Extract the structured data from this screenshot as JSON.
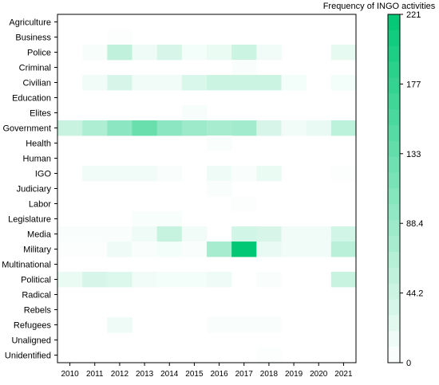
{
  "chart_data": {
    "type": "heatmap",
    "title": "",
    "xlabel": "",
    "ylabel": "",
    "x_categories": [
      "2010",
      "2011",
      "2012",
      "2013",
      "2014",
      "2015",
      "2016",
      "2017",
      "2018",
      "2019",
      "2020",
      "2021"
    ],
    "y_categories": [
      "Agriculture",
      "Business",
      "Police",
      "Criminal",
      "Civilian",
      "Education",
      "Elites",
      "Government",
      "Health",
      "Human",
      "IGO",
      "Judiciary",
      "Labor",
      "Legislature",
      "Media",
      "Military",
      "Multinational",
      "Political",
      "Radical",
      "Rebels",
      "Refugees",
      "Unaligned",
      "Unidentified"
    ],
    "values": [
      [
        0,
        0,
        0,
        0,
        0,
        0,
        0,
        0,
        0,
        0,
        0,
        0
      ],
      [
        0,
        0,
        3,
        0,
        0,
        0,
        0,
        0,
        0,
        0,
        0,
        0
      ],
      [
        0,
        8,
        55,
        15,
        35,
        10,
        18,
        45,
        12,
        0,
        0,
        22
      ],
      [
        0,
        0,
        0,
        0,
        0,
        0,
        0,
        5,
        0,
        0,
        0,
        0
      ],
      [
        0,
        12,
        35,
        12,
        12,
        32,
        45,
        45,
        45,
        10,
        0,
        10
      ],
      [
        0,
        0,
        0,
        0,
        0,
        0,
        0,
        0,
        0,
        0,
        0,
        0
      ],
      [
        0,
        0,
        0,
        0,
        0,
        8,
        0,
        0,
        0,
        0,
        0,
        0
      ],
      [
        48,
        70,
        100,
        130,
        100,
        85,
        75,
        80,
        35,
        12,
        20,
        58
      ],
      [
        0,
        0,
        0,
        0,
        0,
        0,
        5,
        0,
        0,
        0,
        0,
        0
      ],
      [
        0,
        0,
        0,
        0,
        0,
        0,
        0,
        0,
        0,
        0,
        0,
        0
      ],
      [
        0,
        12,
        12,
        12,
        5,
        0,
        15,
        5,
        18,
        0,
        0,
        3
      ],
      [
        0,
        0,
        0,
        0,
        0,
        0,
        5,
        0,
        0,
        0,
        0,
        0
      ],
      [
        0,
        0,
        0,
        0,
        0,
        0,
        0,
        3,
        0,
        0,
        0,
        0
      ],
      [
        0,
        0,
        0,
        6,
        6,
        0,
        0,
        0,
        0,
        0,
        0,
        0
      ],
      [
        5,
        5,
        5,
        15,
        50,
        12,
        0,
        40,
        35,
        12,
        12,
        40
      ],
      [
        3,
        3,
        15,
        5,
        10,
        5,
        75,
        221,
        20,
        12,
        12,
        60
      ],
      [
        0,
        0,
        0,
        0,
        0,
        0,
        0,
        0,
        0,
        0,
        0,
        0
      ],
      [
        18,
        35,
        30,
        12,
        10,
        10,
        15,
        0,
        5,
        0,
        0,
        48
      ],
      [
        0,
        0,
        0,
        0,
        0,
        0,
        0,
        0,
        0,
        0,
        0,
        0
      ],
      [
        0,
        0,
        0,
        0,
        0,
        0,
        0,
        0,
        0,
        0,
        0,
        0
      ],
      [
        0,
        0,
        15,
        0,
        0,
        0,
        5,
        5,
        5,
        0,
        0,
        0
      ],
      [
        0,
        0,
        0,
        0,
        0,
        0,
        0,
        0,
        0,
        0,
        0,
        0
      ],
      [
        0,
        0,
        0,
        0,
        0,
        0,
        0,
        0,
        3,
        0,
        0,
        0
      ]
    ],
    "colorbar": {
      "label": "Frequency of INGO activities",
      "min": 0,
      "max": 221,
      "ticks": [
        "0",
        "44.2",
        "88.4",
        "133",
        "177",
        "221"
      ]
    },
    "colors": {
      "low": "#ffffff",
      "high": "#00c875",
      "grid": "#000000"
    }
  }
}
